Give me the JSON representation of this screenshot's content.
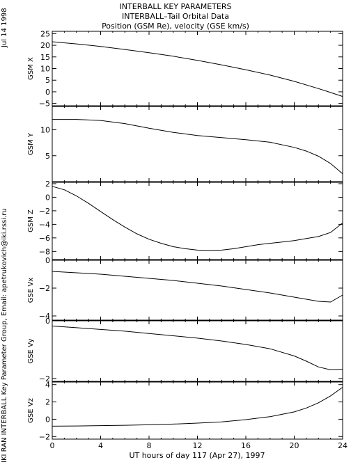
{
  "header": {
    "title1": "INTERBALL KEY PARAMETERS",
    "title2": "INTERBALL–Tail Orbital Data",
    "title3": "Position (GSM Re), velocity (GSE km/s)"
  },
  "side": {
    "date": "Jul 14 1998",
    "credit": "IKI RAN INTERBALL Key Parameter Group, Email: apetrukovich@iki.rssi.ru"
  },
  "chart_data": {
    "type": "line",
    "xlabel": "UT hours of day 117 (Apr 27), 1997",
    "xlim": [
      0,
      24
    ],
    "xticks": [
      "0",
      "4",
      "8",
      "12",
      "16",
      "20",
      "24"
    ],
    "panels": [
      {
        "ylabel": "GSM X",
        "ylim": [
          -6,
          26
        ],
        "yticks": [
          {
            "v": 25,
            "t": "25"
          },
          {
            "v": 20,
            "t": "20"
          },
          {
            "v": 15,
            "t": "15"
          },
          {
            "v": 10,
            "t": "10"
          },
          {
            "v": 5,
            "t": "5"
          },
          {
            "v": 0,
            "t": "0"
          },
          {
            "v": -5,
            "t": "−5"
          }
        ],
        "x": [
          0,
          2,
          4,
          6,
          8,
          10,
          12,
          14,
          16,
          18,
          20,
          22,
          23,
          24
        ],
        "y": [
          21.5,
          20.6,
          19.5,
          18.2,
          16.8,
          15.3,
          13.5,
          11.6,
          9.5,
          7.2,
          4.5,
          1.4,
          -0.3,
          -2.0
        ]
      },
      {
        "ylabel": "GSM Y",
        "ylim": [
          0,
          14.5
        ],
        "yticks": [
          {
            "v": 10,
            "t": "10"
          },
          {
            "v": 5,
            "t": "5"
          }
        ],
        "x": [
          0,
          2,
          4,
          6,
          8,
          10,
          12,
          14,
          16,
          18,
          20,
          21,
          22,
          23,
          24
        ],
        "y": [
          12.0,
          12.0,
          11.8,
          11.2,
          10.3,
          9.5,
          8.9,
          8.5,
          8.1,
          7.6,
          6.6,
          5.9,
          4.9,
          3.5,
          1.5
        ]
      },
      {
        "ylabel": "GSM Z",
        "ylim": [
          -9.2,
          2.2
        ],
        "yticks": [
          {
            "v": 2,
            "t": "2"
          },
          {
            "v": 0,
            "t": "0"
          },
          {
            "v": -2,
            "t": "−2"
          },
          {
            "v": -4,
            "t": "−4"
          },
          {
            "v": -6,
            "t": "−6"
          },
          {
            "v": -8,
            "t": "−8"
          }
        ],
        "x": [
          0,
          1,
          2,
          3,
          4,
          5,
          6,
          7,
          8,
          9,
          10,
          11,
          12,
          13,
          14,
          15,
          16,
          17,
          18,
          19,
          20,
          21,
          22,
          23,
          24
        ],
        "y": [
          1.6,
          1.1,
          0.2,
          -0.9,
          -2.1,
          -3.3,
          -4.4,
          -5.4,
          -6.2,
          -6.8,
          -7.3,
          -7.6,
          -7.8,
          -7.85,
          -7.8,
          -7.6,
          -7.3,
          -7.0,
          -6.8,
          -6.6,
          -6.4,
          -6.1,
          -5.8,
          -5.2,
          -3.8
        ]
      },
      {
        "ylabel": "GSE Vx",
        "ylim": [
          -4.3,
          0
        ],
        "yticks": [
          {
            "v": 0,
            "t": "0"
          },
          {
            "v": -2,
            "t": "−2"
          },
          {
            "v": -4,
            "t": "−4"
          }
        ],
        "x": [
          0,
          2,
          4,
          6,
          8,
          10,
          12,
          14,
          16,
          18,
          20,
          21,
          22,
          23,
          24
        ],
        "y": [
          -0.8,
          -0.9,
          -1.0,
          -1.15,
          -1.3,
          -1.45,
          -1.65,
          -1.85,
          -2.1,
          -2.35,
          -2.65,
          -2.8,
          -2.95,
          -3.0,
          -2.5
        ]
      },
      {
        "ylabel": "GSE Vy",
        "ylim": [
          -2.1,
          0
        ],
        "yticks": [
          {
            "v": 0,
            "t": "0"
          },
          {
            "v": -2,
            "t": "−2"
          }
        ],
        "x": [
          0,
          2,
          4,
          6,
          8,
          10,
          12,
          14,
          16,
          18,
          20,
          21,
          22,
          23,
          24
        ],
        "y": [
          -0.18,
          -0.24,
          -0.3,
          -0.36,
          -0.44,
          -0.52,
          -0.6,
          -0.7,
          -0.82,
          -0.97,
          -1.22,
          -1.4,
          -1.6,
          -1.7,
          -1.68
        ]
      },
      {
        "ylabel": "GSE Vz",
        "ylim": [
          -2.3,
          4.3
        ],
        "yticks": [
          {
            "v": 4,
            "t": "4"
          },
          {
            "v": 2,
            "t": "2"
          },
          {
            "v": 0,
            "t": "0"
          },
          {
            "v": -2,
            "t": "−2"
          }
        ],
        "x": [
          0,
          2,
          4,
          6,
          8,
          10,
          12,
          14,
          16,
          18,
          20,
          21,
          22,
          23,
          24
        ],
        "y": [
          -0.8,
          -0.78,
          -0.74,
          -0.7,
          -0.64,
          -0.56,
          -0.45,
          -0.3,
          -0.05,
          0.3,
          0.85,
          1.3,
          1.9,
          2.7,
          3.7
        ]
      }
    ]
  }
}
